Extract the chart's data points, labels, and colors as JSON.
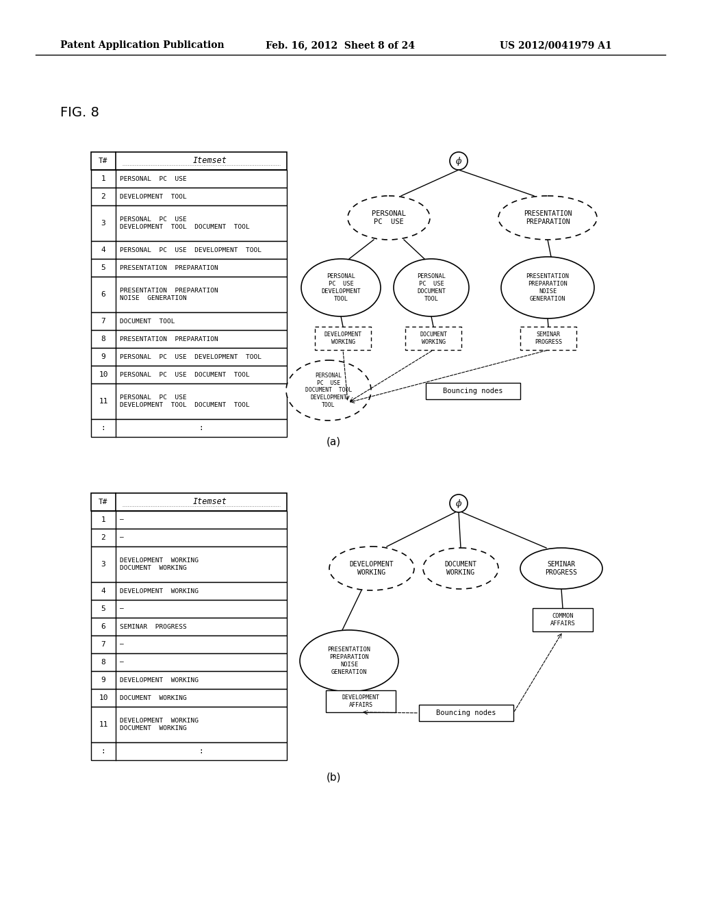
{
  "header_left": "Patent Application Publication",
  "header_mid": "Feb. 16, 2012  Sheet 8 of 24",
  "header_right": "US 2012/0041979 A1",
  "fig_label": "FIG. 8",
  "table_a_rows": [
    [
      "1",
      "PERSONAL  PC  USE"
    ],
    [
      "2",
      "DEVELOPMENT  TOOL"
    ],
    [
      "3",
      "PERSONAL  PC  USE\nDEVELOPMENT  TOOL  DOCUMENT  TOOL"
    ],
    [
      "4",
      "PERSONAL  PC  USE  DEVELOPMENT  TOOL"
    ],
    [
      "5",
      "PRESENTATION  PREPARATION"
    ],
    [
      "6",
      "PRESENTATION  PREPARATION\nNOISE  GENERATION"
    ],
    [
      "7",
      "DOCUMENT  TOOL"
    ],
    [
      "8",
      "PRESENTATION  PREPARATION"
    ],
    [
      "9",
      "PERSONAL  PC  USE  DEVELOPMENT  TOOL"
    ],
    [
      "10",
      "PERSONAL  PC  USE  DOCUMENT  TOOL"
    ],
    [
      "11",
      "PERSONAL  PC  USE\nDEVELOPMENT  TOOL  DOCUMENT  TOOL"
    ],
    [
      ":",
      ":"
    ]
  ],
  "table_b_rows": [
    [
      "1",
      "–"
    ],
    [
      "2",
      "–"
    ],
    [
      "3",
      "DEVELOPMENT  WORKING\nDOCUMENT  WORKING"
    ],
    [
      "4",
      "DEVELOPMENT  WORKING"
    ],
    [
      "5",
      "–"
    ],
    [
      "6",
      "SEMINAR  PROGRESS"
    ],
    [
      "7",
      "–"
    ],
    [
      "8",
      "–"
    ],
    [
      "9",
      "DEVELOPMENT  WORKING"
    ],
    [
      "10",
      "DOCUMENT  WORKING"
    ],
    [
      "11",
      "DEVELOPMENT  WORKING\nDOCUMENT  WORKING"
    ],
    [
      ":",
      ":"
    ]
  ],
  "label_a": "(a)",
  "label_b": "(b)",
  "phi": "ϕ"
}
